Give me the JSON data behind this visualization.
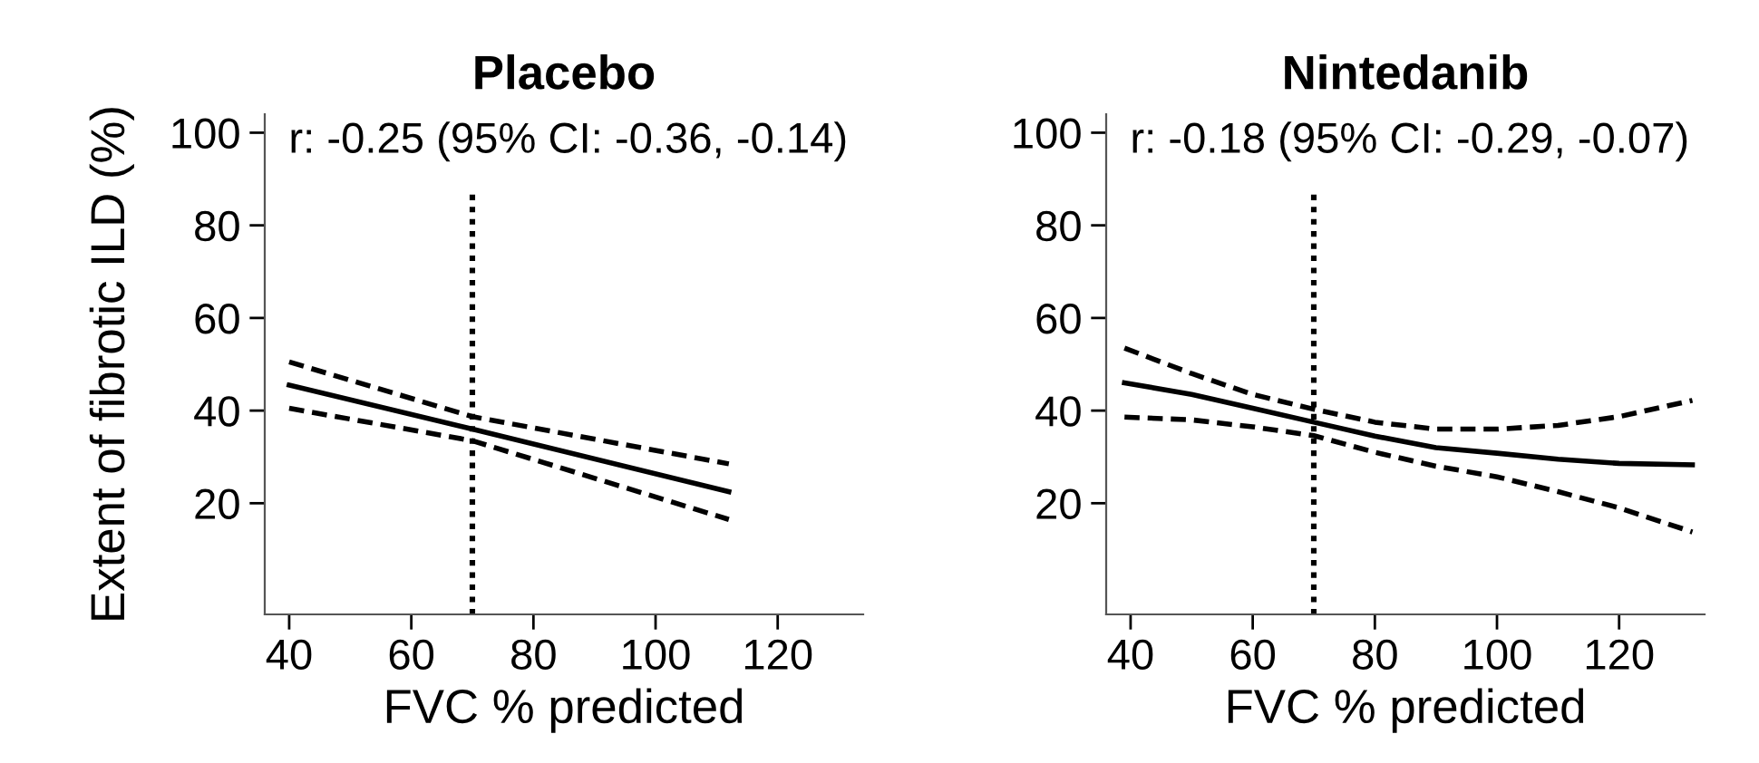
{
  "chart_data": [
    {
      "type": "line",
      "title": "Placebo",
      "xlabel": "FVC % predicted",
      "ylabel": "Extent of fibrotic ILD (%)",
      "annotations": [
        "r: -0.25 (95% CI: -0.36, -0.14)"
      ],
      "xlim": [
        36,
        134
      ],
      "ylim": [
        -4,
        104
      ],
      "xticks": [
        40,
        60,
        80,
        100,
        120
      ],
      "yticks": [
        20,
        40,
        60,
        80,
        100
      ],
      "grid": false,
      "legend": false,
      "series": [
        {
          "color": "#000000",
          "line_style": "solid",
          "x": [
            40,
            70,
            112
          ],
          "values": [
            45.5,
            36,
            22.5
          ]
        },
        {
          "color": "#000000",
          "line_style": "dashed",
          "x": [
            40,
            70,
            112
          ],
          "values": [
            50.5,
            38.7,
            28.5
          ]
        },
        {
          "color": "#000000",
          "line_style": "dashed",
          "x": [
            40,
            70,
            112
          ],
          "values": [
            40.5,
            33.5,
            16.5
          ]
        }
      ],
      "ref_lines": [
        {
          "axis": "x",
          "value": 70,
          "line_style": "dotted",
          "color": "#000000"
        }
      ]
    },
    {
      "type": "line",
      "title": "Nintedanib",
      "xlabel": "FVC % predicted",
      "annotations": [
        "r: -0.18 (95% CI: -0.29, -0.07)"
      ],
      "xlim": [
        36,
        134
      ],
      "ylim": [
        -4,
        104
      ],
      "xticks": [
        40,
        60,
        80,
        100,
        120
      ],
      "yticks": [
        20,
        40,
        60,
        80,
        100
      ],
      "grid": false,
      "legend": false,
      "series": [
        {
          "color": "#000000",
          "line_style": "solid",
          "x": [
            39,
            50,
            60,
            70,
            80,
            90,
            100,
            110,
            120,
            132
          ],
          "values": [
            46,
            43.5,
            40.5,
            37.5,
            34.5,
            32,
            30.8,
            29.5,
            28.6,
            28.3
          ]
        },
        {
          "color": "#000000",
          "line_style": "dashed",
          "x": [
            39,
            50,
            60,
            70,
            80,
            90,
            100,
            110,
            120,
            132
          ],
          "values": [
            53.5,
            48,
            43.5,
            40.3,
            37.5,
            36,
            36,
            36.8,
            38.7,
            42.2
          ]
        },
        {
          "color": "#000000",
          "line_style": "dashed",
          "x": [
            39,
            50,
            60,
            70,
            80,
            90,
            100,
            110,
            120,
            132
          ],
          "values": [
            38.6,
            38,
            36.5,
            34.6,
            31,
            28,
            25.7,
            22.5,
            19,
            13.8
          ]
        }
      ],
      "ref_lines": [
        {
          "axis": "x",
          "value": 70,
          "line_style": "dotted",
          "color": "#000000"
        }
      ]
    }
  ]
}
